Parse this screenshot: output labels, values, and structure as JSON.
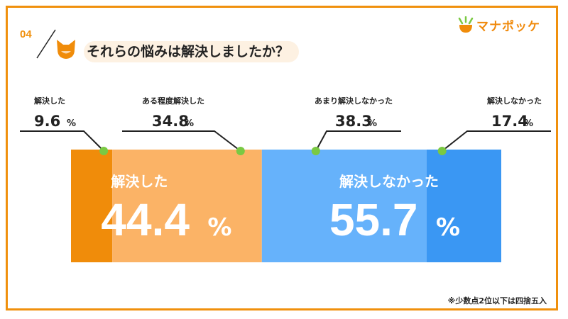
{
  "header": {
    "number": "04",
    "title": "それらの悩みは解決しましたか？"
  },
  "brand": {
    "name": "マナポッケ"
  },
  "footnote": "※少数点2位以下は四捨五入",
  "chart_data": {
    "type": "bar",
    "orientation": "horizontal-stacked",
    "unit": "%",
    "segments": [
      {
        "label": "解決した",
        "value": 9.6,
        "color": "#f08c0a"
      },
      {
        "label": "ある程度解決した",
        "value": 34.8,
        "color": "#fbb366"
      },
      {
        "label": "あまり解決しなかった",
        "value": 38.3,
        "color": "#66b2fb"
      },
      {
        "label": "解決しなかった",
        "value": 17.4,
        "color": "#3a97f3"
      }
    ],
    "groups": [
      {
        "label": "解決した",
        "value": "44.4"
      },
      {
        "label": "解決しなかった",
        "value": "55.7"
      }
    ],
    "marker_color": "#7ac943"
  }
}
